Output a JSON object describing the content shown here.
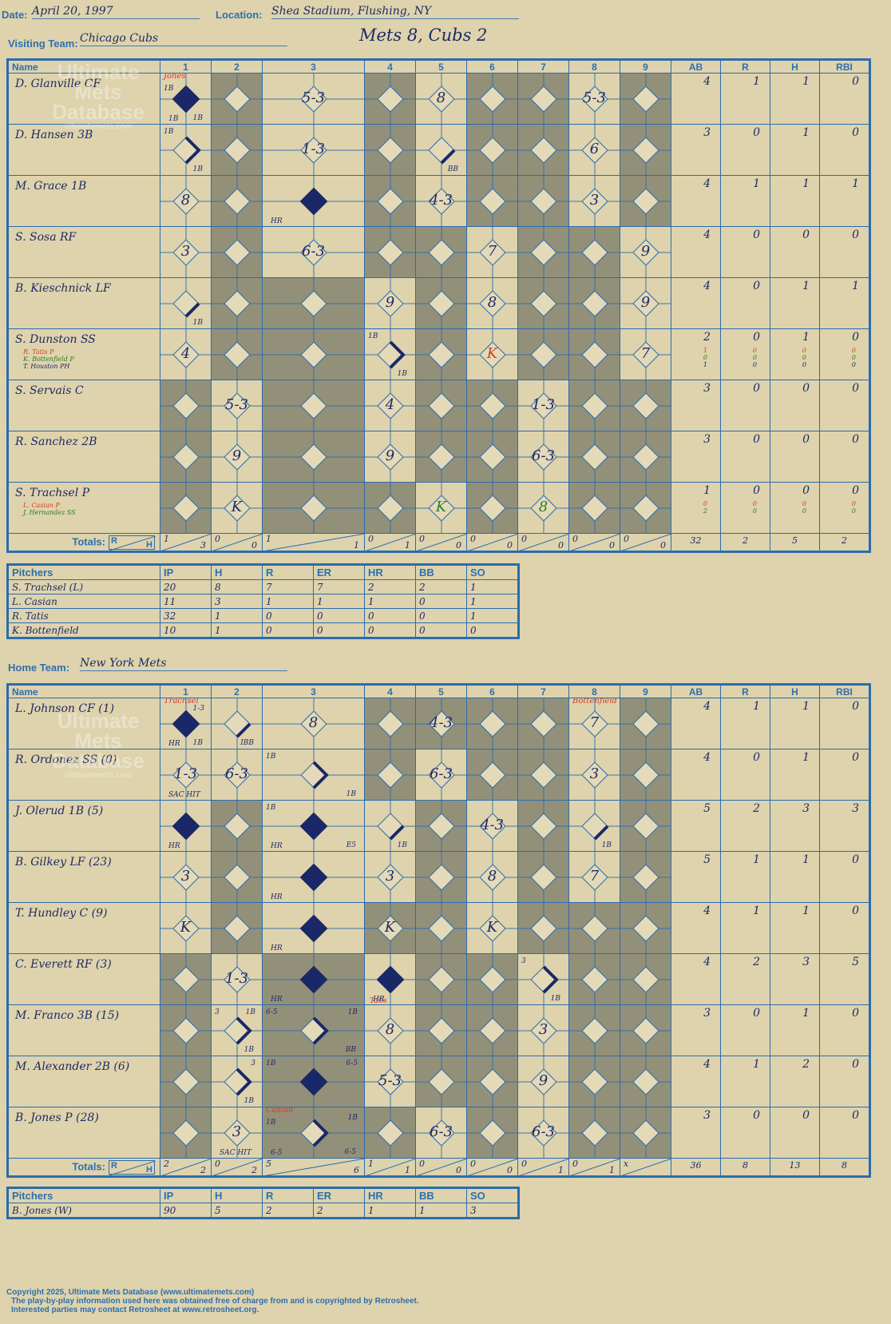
{
  "header": {
    "date_label": "Date:",
    "date": "April 20, 1997",
    "location_label": "Location:",
    "location": "Shea Stadium, Flushing, NY",
    "visiting_label": "Visiting Team:",
    "visiting_team": "Chicago Cubs",
    "result": "Mets 8, Cubs 2",
    "home_label": "Home Team:",
    "home_team": "New York Mets"
  },
  "grid_headers": {
    "name": "Name",
    "innings": [
      "1",
      "2",
      "3",
      "4",
      "5",
      "6",
      "7",
      "8",
      "9"
    ],
    "stats": [
      "AB",
      "R",
      "H",
      "RBI"
    ],
    "totals": "Totals:",
    "r": "R",
    "h": "H"
  },
  "pitch_headers": [
    "Pitchers",
    "IP",
    "H",
    "R",
    "ER",
    "HR",
    "BB",
    "SO"
  ],
  "watermark": {
    "line1": "Ultimate",
    "line2": "Mets",
    "line3": "Database",
    "url": "ultimatemets.com"
  },
  "visitors": {
    "shade": [
      [
        2,
        4,
        6,
        7,
        9
      ],
      [
        2,
        4,
        6,
        7,
        9
      ],
      [
        2,
        4,
        6,
        7,
        9
      ],
      [
        2,
        4,
        5,
        7,
        8
      ],
      [
        2,
        3,
        5,
        7,
        8
      ],
      [
        2,
        3,
        5,
        7,
        8
      ],
      [
        1,
        3,
        5,
        6,
        8,
        9
      ],
      [
        1,
        3,
        5,
        6,
        8,
        9
      ],
      [
        1,
        3,
        4,
        6,
        8,
        9
      ]
    ],
    "players": [
      {
        "name": "D. Glanville CF",
        "stats": [
          "4",
          "1",
          "1",
          "0"
        ],
        "cells": {
          "1": {
            "d": "full",
            "tl": "1B",
            "bl": "1B",
            "br": "1B",
            "top": "Jones",
            "topc": "red"
          },
          "3": {
            "m": "5-3"
          },
          "5": {
            "m": "8"
          },
          "8": {
            "m": "5-3"
          }
        }
      },
      {
        "name": "D. Hansen 3B",
        "stats": [
          "3",
          "0",
          "1",
          "0"
        ],
        "cells": {
          "1": {
            "d": "to2",
            "tl": "1B",
            "br": "1B"
          },
          "3": {
            "m": "1-3"
          },
          "5": {
            "d": "to1",
            "br": "BB"
          },
          "8": {
            "m": "6"
          }
        }
      },
      {
        "name": "M. Grace 1B",
        "stats": [
          "4",
          "1",
          "1",
          "1"
        ],
        "cells": {
          "1": {
            "m": "8"
          },
          "3": {
            "d": "full",
            "bl": "HR"
          },
          "5": {
            "m": "4-3"
          },
          "8": {
            "m": "3"
          }
        }
      },
      {
        "name": "S. Sosa RF",
        "stats": [
          "4",
          "0",
          "0",
          "0"
        ],
        "cells": {
          "1": {
            "m": "3"
          },
          "3": {
            "m": "6-3"
          },
          "6": {
            "m": "7"
          },
          "9": {
            "m": "9"
          }
        }
      },
      {
        "name": "B. Kieschnick LF",
        "stats": [
          "4",
          "0",
          "1",
          "1"
        ],
        "cells": {
          "1": {
            "d": "to1",
            "br": "1B"
          },
          "4": {
            "m": "9"
          },
          "6": {
            "m": "8"
          },
          "9": {
            "m": "9"
          }
        }
      },
      {
        "name": "S. Dunston SS",
        "subs": [
          {
            "t": "R. Tatis P",
            "c": "red"
          },
          {
            "t": "K. Bottenfield P",
            "c": "grn"
          },
          {
            "t": "T. Houston PH",
            "c": ""
          }
        ],
        "stats": [
          "2",
          "0",
          "1",
          "0"
        ],
        "substats": [
          [
            "1",
            "0",
            "0",
            "0"
          ],
          [
            "0",
            "0",
            "0",
            "0"
          ],
          [
            "1",
            "0",
            "0",
            "0"
          ]
        ],
        "cells": {
          "1": {
            "m": "4"
          },
          "4": {
            "d": "to2",
            "tl": "1B",
            "br": "1B"
          },
          "6": {
            "m": "K",
            "c": "red"
          },
          "9": {
            "m": "7"
          }
        }
      },
      {
        "name": "S. Servais C",
        "stats": [
          "3",
          "0",
          "0",
          "0"
        ],
        "cells": {
          "2": {
            "m": "5-3"
          },
          "4": {
            "m": "4"
          },
          "7": {
            "m": "1-3"
          }
        }
      },
      {
        "name": "R. Sanchez 2B",
        "stats": [
          "3",
          "0",
          "0",
          "0"
        ],
        "cells": {
          "2": {
            "m": "9"
          },
          "4": {
            "m": "9"
          },
          "7": {
            "m": "6-3"
          }
        }
      },
      {
        "name": "S. Trachsel P",
        "subs": [
          {
            "t": "L. Casian P",
            "c": "red"
          },
          {
            "t": "J. Hernandez SS",
            "c": "grn"
          }
        ],
        "stats": [
          "1",
          "0",
          "0",
          "0"
        ],
        "substats": [
          [
            "0",
            "0",
            "0",
            "0"
          ],
          [
            "2",
            "0",
            "0",
            "0"
          ]
        ],
        "cells": {
          "2": {
            "m": "K"
          },
          "5": {
            "m": "K",
            "c": "grn"
          },
          "7": {
            "m": "8",
            "c": "grn"
          }
        }
      }
    ],
    "totals": [
      [
        "1",
        "3"
      ],
      [
        "0",
        "0"
      ],
      [
        "1",
        "1"
      ],
      [
        "0",
        "1"
      ],
      [
        "0",
        "0"
      ],
      [
        "0",
        "0"
      ],
      [
        "0",
        "0"
      ],
      [
        "0",
        "0"
      ],
      [
        "0",
        "0"
      ]
    ],
    "total_stats": [
      "32",
      "2",
      "5",
      "2"
    ],
    "pitchers": [
      [
        "S. Trachsel (L)",
        "20",
        "8",
        "7",
        "7",
        "2",
        "2",
        "1"
      ],
      [
        "L. Casian",
        "11",
        "3",
        "1",
        "1",
        "1",
        "0",
        "1"
      ],
      [
        "R. Tatis",
        "32",
        "1",
        "0",
        "0",
        "0",
        "0",
        "1"
      ],
      [
        "K. Bottenfield",
        "10",
        "1",
        "0",
        "0",
        "0",
        "0",
        "0"
      ]
    ]
  },
  "home": {
    "shade": [
      [
        4,
        5,
        6,
        7,
        9
      ],
      [
        4,
        6,
        7,
        9
      ],
      [
        2,
        5,
        7,
        9
      ],
      [
        2,
        5,
        7,
        9
      ],
      [
        2,
        4,
        5,
        7,
        8,
        9
      ],
      [
        1,
        3,
        5,
        6,
        8,
        9
      ],
      [
        1,
        3,
        5,
        6,
        8,
        9
      ],
      [
        1,
        3,
        5,
        6,
        8,
        9
      ],
      [
        1,
        3,
        4,
        6,
        8,
        9
      ]
    ],
    "players": [
      {
        "name": "L. Johnson CF (1)",
        "stats": [
          "4",
          "1",
          "1",
          "0"
        ],
        "cells": {
          "1": {
            "d": "full",
            "bl": "HR",
            "br": "1B",
            "top": "Trachsel",
            "topc": "red",
            "tr": "1-3"
          },
          "2": {
            "d": "to1",
            "br": "IBB"
          },
          "3": {
            "m": "8"
          },
          "5": {
            "m": "4-3"
          },
          "8": {
            "m": "7",
            "top": "Bottenfield",
            "topc": "red"
          }
        }
      },
      {
        "name": "R. Ordonez SS (0)",
        "stats": [
          "4",
          "0",
          "1",
          "0"
        ],
        "cells": {
          "1": {
            "m": "1-3",
            "bl": "SAC HIT"
          },
          "2": {
            "m": "6-3"
          },
          "3": {
            "d": "to2",
            "tl": "1B",
            "br": "1B"
          },
          "5": {
            "m": "6-3"
          },
          "8": {
            "m": "3"
          }
        }
      },
      {
        "name": "J. Olerud 1B (5)",
        "stats": [
          "5",
          "2",
          "3",
          "3"
        ],
        "cells": {
          "1": {
            "d": "full",
            "bl": "HR"
          },
          "3": {
            "d": "full",
            "tl": "1B",
            "bl": "HR",
            "br": "E5"
          },
          "4": {
            "d": "to1",
            "br": "1B"
          },
          "6": {
            "m": "4-3"
          },
          "8": {
            "d": "to1",
            "br": "1B"
          }
        }
      },
      {
        "name": "B. Gilkey LF (23)",
        "stats": [
          "5",
          "1",
          "1",
          "0"
        ],
        "cells": {
          "1": {
            "m": "3"
          },
          "3": {
            "d": "full",
            "bl": "HR"
          },
          "4": {
            "m": "3"
          },
          "6": {
            "m": "8"
          },
          "8": {
            "m": "7"
          }
        }
      },
      {
        "name": "T. Hundley C (9)",
        "stats": [
          "4",
          "1",
          "1",
          "0"
        ],
        "cells": {
          "1": {
            "m": "K"
          },
          "3": {
            "d": "full",
            "bl": "HR"
          },
          "4": {
            "m": "K"
          },
          "6": {
            "m": "K"
          }
        }
      },
      {
        "name": "C. Everett RF (3)",
        "stats": [
          "4",
          "2",
          "3",
          "5"
        ],
        "cells": {
          "2": {
            "m": "1-3"
          },
          "3": {
            "d": "full",
            "bl": "HR"
          },
          "4": {
            "d": "full",
            "bl": "HR",
            "under": "Tatis"
          },
          "7": {
            "d": "to2",
            "tl": "3",
            "br": "1B"
          }
        }
      },
      {
        "name": "M. Franco 3B (15)",
        "stats": [
          "3",
          "0",
          "1",
          "0"
        ],
        "cells": {
          "2": {
            "d": "to2",
            "tl": "3",
            "tr": "1B",
            "br": "1B"
          },
          "3": {
            "d": "to2",
            "tl": "6-5",
            "tr": "1B",
            "br": "BB"
          },
          "4": {
            "m": "8"
          },
          "7": {
            "m": "3"
          }
        }
      },
      {
        "name": "M. Alexander 2B (6)",
        "stats": [
          "4",
          "1",
          "2",
          "0"
        ],
        "cells": {
          "2": {
            "d": "to2",
            "tr": "3",
            "br": "1B"
          },
          "3": {
            "d": "full",
            "tl": "1B",
            "tr": "6-5"
          },
          "4": {
            "m": "5-3"
          },
          "7": {
            "m": "9"
          }
        }
      },
      {
        "name": "B. Jones P (28)",
        "stats": [
          "3",
          "0",
          "0",
          "0"
        ],
        "cells": {
          "2": {
            "m": "3",
            "bl": "SAC HIT"
          },
          "3": {
            "d": "to2",
            "top": "Casian",
            "topc": "red",
            "tl": "1B",
            "tr": "1B",
            "bl": "6-5",
            "br": "6-5"
          },
          "5": {
            "m": "6-3"
          },
          "7": {
            "m": "6-3"
          }
        }
      }
    ],
    "totals": [
      [
        "2",
        "2"
      ],
      [
        "0",
        "2"
      ],
      [
        "5",
        "6"
      ],
      [
        "1",
        "1"
      ],
      [
        "0",
        "0"
      ],
      [
        "0",
        "0"
      ],
      [
        "0",
        "1"
      ],
      [
        "0",
        "1"
      ],
      [
        "x",
        ""
      ]
    ],
    "total_stats": [
      "36",
      "8",
      "13",
      "8"
    ],
    "pitchers": [
      [
        "B. Jones (W)",
        "90",
        "5",
        "2",
        "2",
        "1",
        "1",
        "3"
      ]
    ]
  },
  "footer": [
    "Copyright 2025, Ultimate Mets Database (www.ultimatemets.com)",
    "The play-by-play information used here was obtained free of charge from and is copyrighted by Retrosheet.",
    "Interested parties may contact Retrosheet at www.retrosheet.org."
  ],
  "colors": {
    "paper": "#ded3ac",
    "shade": "#939079",
    "line": "#2b6cad",
    "ink": "#1f2a66",
    "diamond": "#1a2868",
    "red": "#d93a2a",
    "green": "#2f7a2a"
  }
}
